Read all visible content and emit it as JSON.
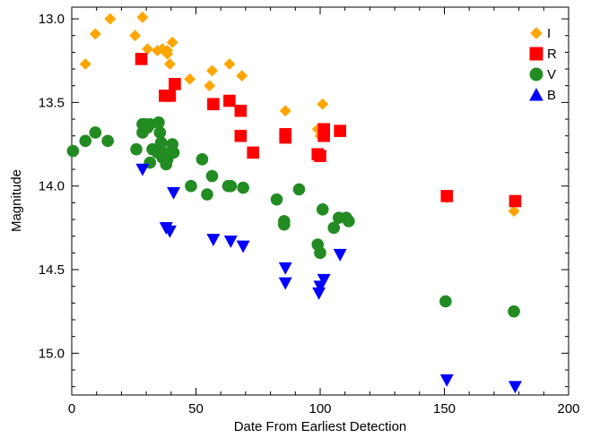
{
  "chart_data": {
    "type": "scatter",
    "title": "",
    "xlabel": "Date From Earliest Detection",
    "ylabel": "Magnitude",
    "xlim": [
      0,
      200
    ],
    "ylim": [
      12.93,
      15.25
    ],
    "y_inverted": true,
    "grid": false,
    "legend_position": "top-right",
    "x_ticks": [
      0,
      50,
      100,
      150,
      200
    ],
    "x_tick_labels": [
      "0",
      "50",
      "100",
      "150",
      "200"
    ],
    "y_ticks": [
      13.0,
      13.5,
      14.0,
      14.5,
      15.0
    ],
    "y_tick_labels": [
      "13.0",
      "13.5",
      "14.0",
      "14.5",
      "15.0"
    ],
    "series": [
      {
        "name": "I",
        "marker": "diamond",
        "color": "#FFA500",
        "points": [
          [
            5.5,
            13.27
          ],
          [
            9.5,
            13.09
          ],
          [
            15.5,
            13.0
          ],
          [
            25.5,
            13.1
          ],
          [
            28.5,
            12.99
          ],
          [
            30.5,
            13.18
          ],
          [
            34.5,
            13.19
          ],
          [
            36.5,
            13.18
          ],
          [
            38.5,
            13.21
          ],
          [
            38.5,
            13.19
          ],
          [
            39.5,
            13.27
          ],
          [
            40.5,
            13.14
          ],
          [
            47.5,
            13.36
          ],
          [
            55.5,
            13.4
          ],
          [
            56.5,
            13.31
          ],
          [
            63.5,
            13.27
          ],
          [
            68.5,
            13.34
          ],
          [
            86.0,
            13.55
          ],
          [
            99.0,
            13.66
          ],
          [
            100.0,
            13.7
          ],
          [
            101.0,
            13.51
          ],
          [
            151.0,
            14.07
          ],
          [
            178.0,
            14.15
          ]
        ]
      },
      {
        "name": "R",
        "marker": "square",
        "color": "#FF0000",
        "points": [
          [
            28.0,
            13.24
          ],
          [
            37.5,
            13.46
          ],
          [
            39.5,
            13.46
          ],
          [
            41.5,
            13.39
          ],
          [
            57.0,
            13.51
          ],
          [
            63.5,
            13.49
          ],
          [
            68.0,
            13.55
          ],
          [
            68.0,
            13.7
          ],
          [
            73.0,
            13.8
          ],
          [
            86.0,
            13.69
          ],
          [
            86.0,
            13.71
          ],
          [
            99.0,
            13.81
          ],
          [
            100.0,
            13.82
          ],
          [
            101.5,
            13.66
          ],
          [
            101.5,
            13.7
          ],
          [
            108.0,
            13.67
          ],
          [
            151.0,
            14.06
          ],
          [
            178.5,
            14.09
          ]
        ]
      },
      {
        "name": "V",
        "marker": "circle",
        "color": "#228B22",
        "points": [
          [
            0.5,
            13.79
          ],
          [
            5.5,
            13.73
          ],
          [
            9.5,
            13.68
          ],
          [
            14.5,
            13.73
          ],
          [
            26.0,
            13.78
          ],
          [
            28.5,
            13.63
          ],
          [
            28.5,
            13.68
          ],
          [
            29.5,
            13.63
          ],
          [
            30.5,
            13.65
          ],
          [
            31.5,
            13.63
          ],
          [
            31.5,
            13.86
          ],
          [
            32.5,
            13.78
          ],
          [
            34.5,
            13.8
          ],
          [
            35.0,
            13.62
          ],
          [
            35.5,
            13.68
          ],
          [
            36.0,
            13.74
          ],
          [
            36.5,
            13.83
          ],
          [
            37.0,
            13.8
          ],
          [
            38.0,
            13.87
          ],
          [
            38.5,
            13.84
          ],
          [
            40.5,
            13.75
          ],
          [
            41.0,
            13.8
          ],
          [
            48.0,
            14.0
          ],
          [
            52.5,
            13.84
          ],
          [
            54.5,
            14.05
          ],
          [
            56.5,
            13.94
          ],
          [
            63.0,
            14.0
          ],
          [
            64.0,
            14.0
          ],
          [
            69.0,
            14.01
          ],
          [
            82.5,
            14.08
          ],
          [
            85.5,
            14.21
          ],
          [
            85.5,
            14.23
          ],
          [
            91.5,
            14.02
          ],
          [
            99.0,
            14.35
          ],
          [
            100.0,
            14.4
          ],
          [
            101.0,
            14.14
          ],
          [
            105.5,
            14.25
          ],
          [
            107.5,
            14.19
          ],
          [
            110.5,
            14.19
          ],
          [
            111.5,
            14.21
          ],
          [
            150.5,
            14.69
          ],
          [
            178.0,
            14.75
          ]
        ]
      },
      {
        "name": "B",
        "marker": "triangle",
        "color": "#0000FF",
        "points": [
          [
            28.5,
            13.9
          ],
          [
            38.0,
            14.25
          ],
          [
            39.5,
            14.27
          ],
          [
            41.0,
            14.04
          ],
          [
            57.0,
            14.32
          ],
          [
            64.0,
            14.33
          ],
          [
            69.0,
            14.36
          ],
          [
            86.0,
            14.49
          ],
          [
            86.0,
            14.58
          ],
          [
            99.5,
            14.64
          ],
          [
            100.0,
            14.6
          ],
          [
            101.5,
            14.56
          ],
          [
            108.0,
            14.41
          ],
          [
            151.0,
            15.16
          ],
          [
            178.5,
            15.2
          ]
        ]
      }
    ]
  }
}
